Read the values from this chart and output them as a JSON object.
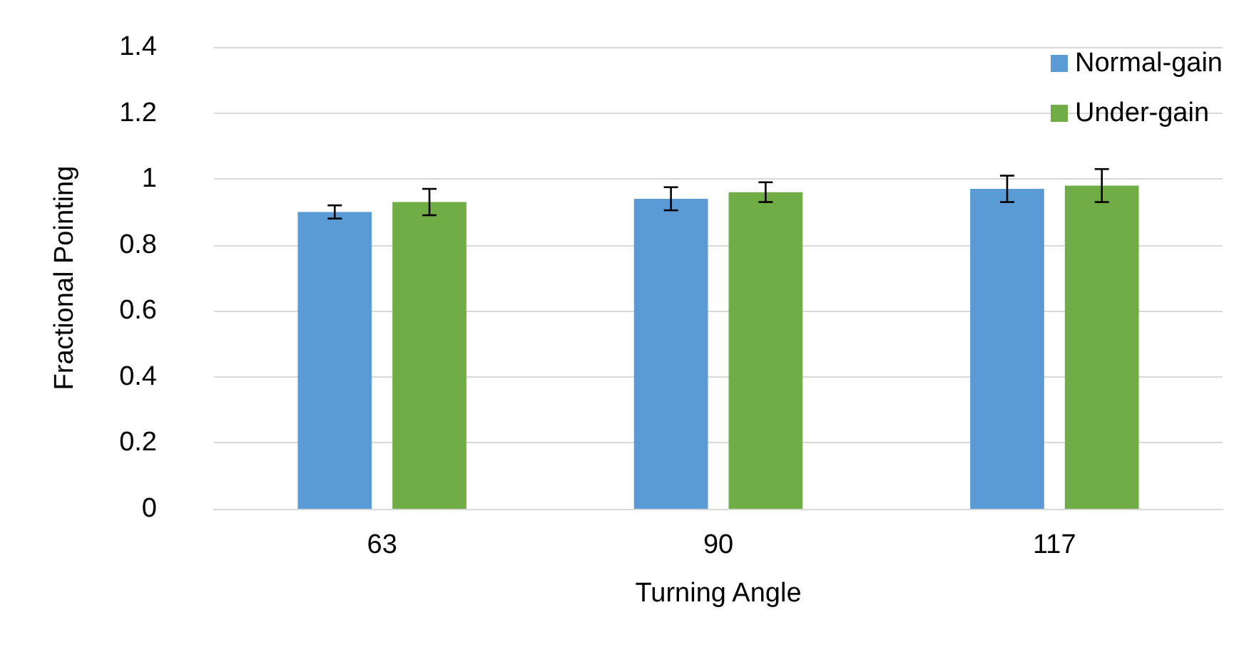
{
  "chart_data": {
    "type": "bar",
    "xlabel": "Turning Angle",
    "ylabel": "Fractional Pointing",
    "categories": [
      "63",
      "90",
      "117"
    ],
    "series": [
      {
        "name": "Normal-gain",
        "color": "#5b9bd5",
        "values": [
          0.9,
          0.94,
          0.97
        ],
        "errors": [
          0.02,
          0.035,
          0.04
        ]
      },
      {
        "name": "Under-gain",
        "color": "#70ad47",
        "values": [
          0.93,
          0.96,
          0.98
        ],
        "errors": [
          0.04,
          0.03,
          0.05
        ]
      }
    ],
    "ylim": [
      0,
      1.4
    ],
    "yticks": [
      0,
      0.2,
      0.4,
      0.6,
      0.8,
      1,
      1.2,
      1.4
    ],
    "grid": "y",
    "legend": "top right"
  }
}
